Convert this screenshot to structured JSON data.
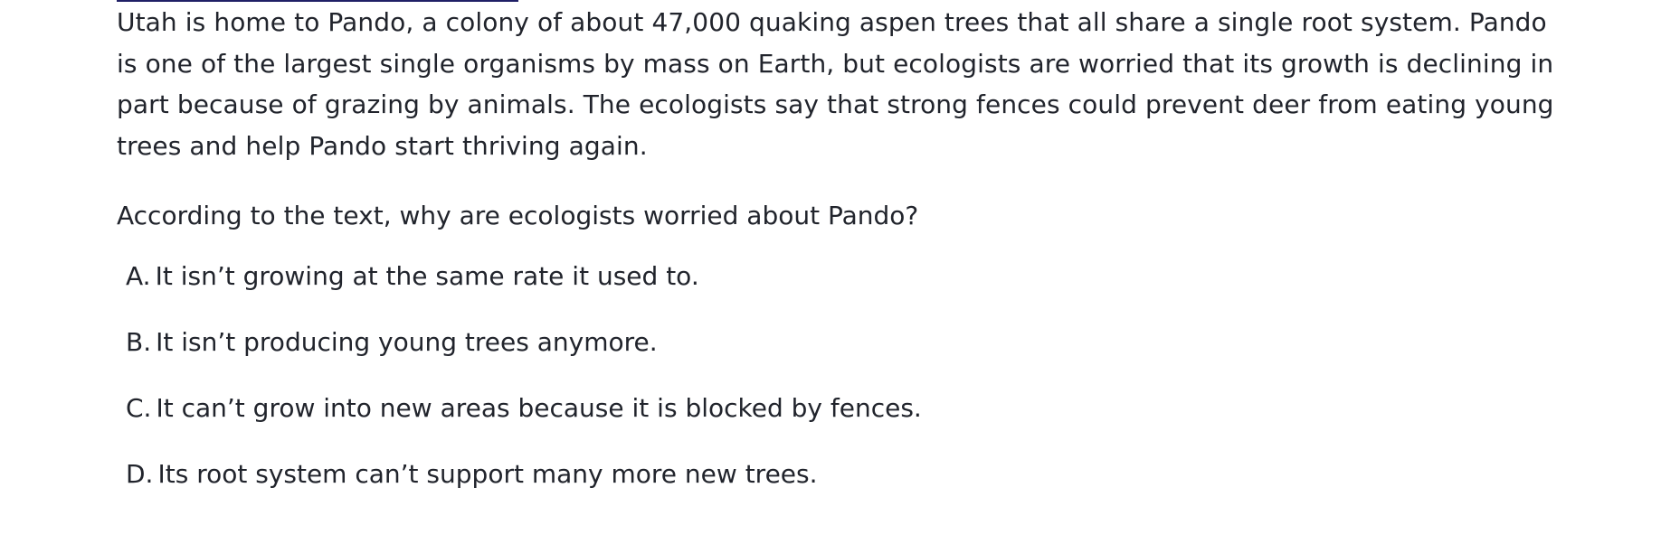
{
  "passage": {
    "text": "Utah is home to Pando, a colony of about 47,000 quaking aspen trees that all share a single root system. Pando is one of the largest single organisms by mass on Earth, but ecologists are worried that its growth is declining in part because of grazing by animals. The ecologists say that strong fences could prevent deer from eating young trees and help Pando start thriving again."
  },
  "question": {
    "text": "According to the text, why are ecologists worried about Pando?"
  },
  "choices": [
    {
      "letter": "A.",
      "text": "It isn’t growing at the same rate it used to."
    },
    {
      "letter": "B.",
      "text": "It isn’t producing young trees anymore."
    },
    {
      "letter": "C.",
      "text": "It can’t grow into new areas because it is blocked by fences."
    },
    {
      "letter": "D.",
      "text": "Its root system can’t support many more new trees."
    }
  ],
  "colors": {
    "text": "#21242c",
    "rule": "#1f1f66",
    "background": "#ffffff"
  }
}
